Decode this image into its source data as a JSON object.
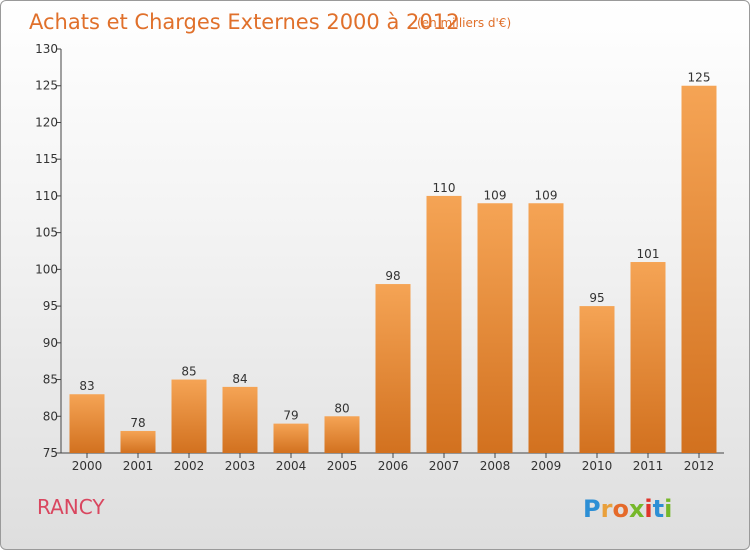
{
  "chart_data": {
    "type": "bar",
    "title": "Achats et Charges Externes 2000 à 2012",
    "subtitle": "(en milliers d'€)",
    "categories": [
      "2000",
      "2001",
      "2002",
      "2003",
      "2004",
      "2005",
      "2006",
      "2007",
      "2008",
      "2009",
      "2010",
      "2011",
      "2012"
    ],
    "values": [
      83,
      78,
      85,
      84,
      79,
      80,
      98,
      110,
      109,
      109,
      95,
      101,
      125
    ],
    "ylim": [
      75,
      130
    ],
    "yticks": [
      75,
      80,
      85,
      90,
      95,
      100,
      105,
      110,
      115,
      120,
      125,
      130
    ],
    "xlabel": "",
    "ylabel": "",
    "grid": false,
    "bar_color_top": "#f5a455",
    "bar_color_bottom": "#d2711f"
  },
  "commune": "RANCY",
  "logo": {
    "letters": [
      "P",
      "r",
      "o",
      "x",
      "i",
      "t",
      "i"
    ],
    "colors": [
      "#2d8fd5",
      "#e9a03b",
      "#e56a2a",
      "#76b82a",
      "#e0352b",
      "#2d8fd5",
      "#76b82a"
    ]
  }
}
